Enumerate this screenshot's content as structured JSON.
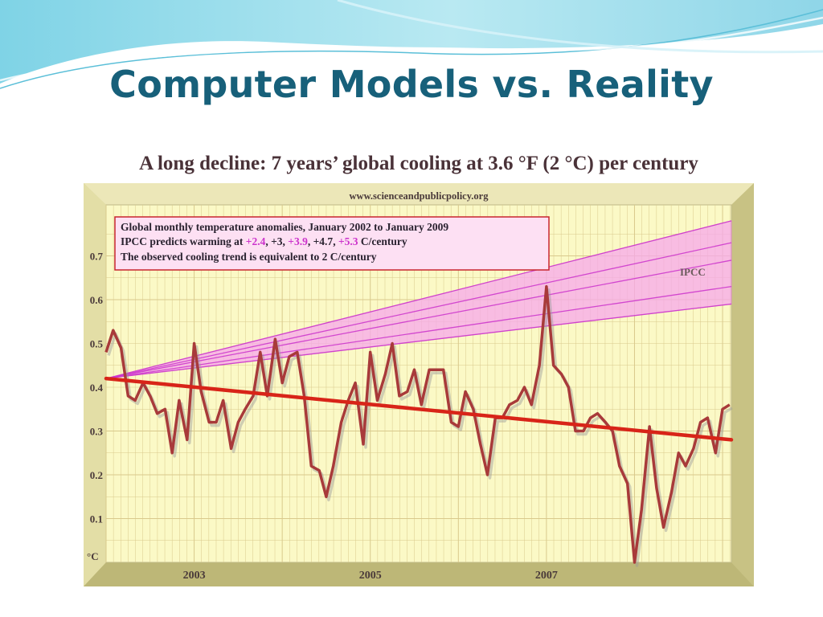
{
  "slide": {
    "title": "Computer Models vs. Reality"
  },
  "colors": {
    "title": "#17607a",
    "frame": "#d8d39a",
    "plot_bg": "#fbf9c6",
    "grid": "#d9c98c",
    "ipcc_band": "#f7a8ec",
    "ipcc_lines": "#cc33cc",
    "observed": "#a83a3a",
    "trend": "#d82418",
    "legend_border": "#c8262e",
    "legend_bg": "#fde0f3"
  },
  "chart_data": {
    "type": "line",
    "title": "A long decline: 7 years’ global cooling at 3.6 °F (2 °C) per century",
    "subtitle": "www.scienceandpublicpolicy.org",
    "ylabel": "°C",
    "ylim": [
      0,
      0.8
    ],
    "xlim": [
      2002,
      2009.1
    ],
    "yticks": [
      "0.7",
      "0.6",
      "0.5",
      "0.4",
      "0.3",
      "0.2",
      "0.1"
    ],
    "xticks": [
      {
        "label": "2003",
        "value": 2003
      },
      {
        "label": "2005",
        "value": 2005
      },
      {
        "label": "2007",
        "value": 2007
      }
    ],
    "grid": true,
    "legend": {
      "position": "top-left",
      "line1": "Global monthly temperature anomalies, January 2002 to January 2009",
      "line2_prefix": "IPCC predicts warming at ",
      "rates": [
        "+2.4",
        "+3",
        "+3.9",
        "+4.7",
        "+5.3"
      ],
      "line2_suffix": " C/century",
      "line3": "The observed cooling trend is equivalent to 2 C/century"
    },
    "ipcc": {
      "label": "IPCC",
      "start": [
        2002.0,
        0.42
      ],
      "end_x": 2009.1,
      "end_values": [
        0.59,
        0.63,
        0.69,
        0.73,
        0.78
      ]
    },
    "trend": {
      "start": [
        2002.0,
        0.42
      ],
      "end": [
        2009.1,
        0.28
      ]
    },
    "series": [
      {
        "x": [
          2002.0,
          2002.08,
          2002.17,
          2002.25,
          2002.33,
          2002.42,
          2002.5,
          2002.58,
          2002.67,
          2002.75,
          2002.83,
          2002.92,
          2003.0,
          2003.08,
          2003.17,
          2003.25,
          2003.33,
          2003.42,
          2003.5,
          2003.58,
          2003.67,
          2003.75,
          2003.83,
          2003.92,
          2004.0,
          2004.08,
          2004.17,
          2004.25,
          2004.33,
          2004.42,
          2004.5,
          2004.58,
          2004.67,
          2004.75,
          2004.83,
          2004.92,
          2005.0,
          2005.08,
          2005.17,
          2005.25,
          2005.33,
          2005.42,
          2005.5,
          2005.58,
          2005.67,
          2005.75,
          2005.83,
          2005.92,
          2006.0,
          2006.08,
          2006.17,
          2006.25,
          2006.33,
          2006.42,
          2006.5,
          2006.58,
          2006.67,
          2006.75,
          2006.83,
          2006.92,
          2007.0,
          2007.08,
          2007.17,
          2007.25,
          2007.33,
          2007.42,
          2007.5,
          2007.58,
          2007.67,
          2007.75,
          2007.83,
          2007.92,
          2008.0,
          2008.08,
          2008.17,
          2008.25,
          2008.33,
          2008.42,
          2008.5,
          2008.58,
          2008.67,
          2008.75,
          2008.83,
          2008.92,
          2009.0,
          2009.08
        ],
        "values": [
          0.48,
          0.53,
          0.49,
          0.38,
          0.37,
          0.41,
          0.38,
          0.34,
          0.35,
          0.25,
          0.37,
          0.28,
          0.5,
          0.39,
          0.32,
          0.32,
          0.37,
          0.26,
          0.32,
          0.35,
          0.38,
          0.48,
          0.38,
          0.51,
          0.41,
          0.47,
          0.48,
          0.38,
          0.22,
          0.21,
          0.15,
          0.22,
          0.32,
          0.37,
          0.41,
          0.27,
          0.48,
          0.37,
          0.43,
          0.5,
          0.38,
          0.39,
          0.44,
          0.36,
          0.44,
          0.44,
          0.44,
          0.32,
          0.31,
          0.39,
          0.35,
          0.27,
          0.2,
          0.33,
          0.33,
          0.36,
          0.37,
          0.4,
          0.36,
          0.45,
          0.63,
          0.45,
          0.43,
          0.4,
          0.3,
          0.3,
          0.33,
          0.34,
          0.32,
          0.3,
          0.22,
          0.18,
          0.0,
          0.12,
          0.31,
          0.17,
          0.08,
          0.16,
          0.25,
          0.22,
          0.26,
          0.32,
          0.33,
          0.25,
          0.35,
          0.36
        ]
      }
    ]
  }
}
